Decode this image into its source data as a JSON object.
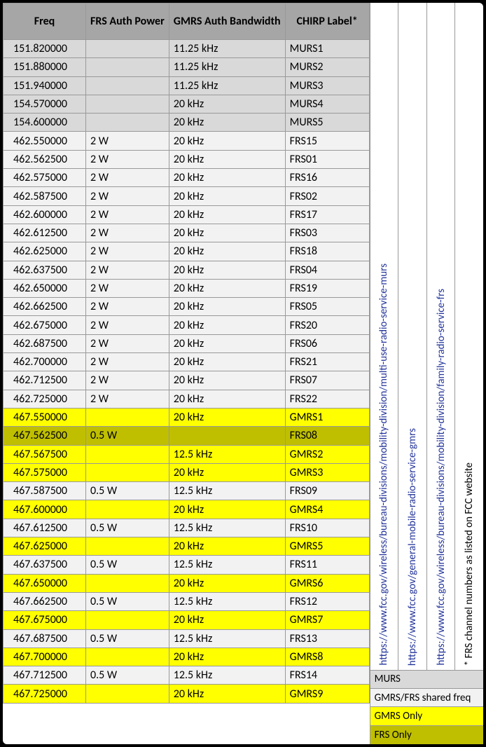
{
  "headers": {
    "freq": "Freq",
    "power": "FRS Auth Power",
    "bw": "GMRS Auth Bandwidth",
    "label": "CHIRP Label*"
  },
  "colors": {
    "header_bg": "#a6a6a6",
    "murs_bg": "#d9d9d9",
    "shared_bg": "#f2f2f2",
    "gmrs_bg": "#ffff00",
    "frs_bg": "#bfbf00",
    "border": "#999999",
    "link": "#223399"
  },
  "rows": [
    {
      "freq": "151.820000",
      "power": "",
      "bw": "11.25 kHz",
      "label": "MURS1",
      "cls": "row-murs"
    },
    {
      "freq": "151.880000",
      "power": "",
      "bw": "11.25 kHz",
      "label": "MURS2",
      "cls": "row-murs"
    },
    {
      "freq": "151.940000",
      "power": "",
      "bw": "11.25 kHz",
      "label": "MURS3",
      "cls": "row-murs"
    },
    {
      "freq": "154.570000",
      "power": "",
      "bw": "20 kHz",
      "label": "MURS4",
      "cls": "row-murs"
    },
    {
      "freq": "154.600000",
      "power": "",
      "bw": "20 kHz",
      "label": "MURS5",
      "cls": "row-murs"
    },
    {
      "freq": "462.550000",
      "power": "2 W",
      "bw": "20 kHz",
      "label": "FRS15",
      "cls": "row-shared"
    },
    {
      "freq": "462.562500",
      "power": "2 W",
      "bw": "20 kHz",
      "label": "FRS01",
      "cls": "row-shared"
    },
    {
      "freq": "462.575000",
      "power": "2 W",
      "bw": "20 kHz",
      "label": "FRS16",
      "cls": "row-shared"
    },
    {
      "freq": "462.587500",
      "power": "2 W",
      "bw": "20 kHz",
      "label": "FRS02",
      "cls": "row-shared"
    },
    {
      "freq": "462.600000",
      "power": "2 W",
      "bw": "20 kHz",
      "label": "FRS17",
      "cls": "row-shared"
    },
    {
      "freq": "462.612500",
      "power": "2 W",
      "bw": "20 kHz",
      "label": "FRS03",
      "cls": "row-shared"
    },
    {
      "freq": "462.625000",
      "power": "2 W",
      "bw": "20 kHz",
      "label": "FRS18",
      "cls": "row-shared"
    },
    {
      "freq": "462.637500",
      "power": "2 W",
      "bw": "20 kHz",
      "label": "FRS04",
      "cls": "row-shared"
    },
    {
      "freq": "462.650000",
      "power": "2 W",
      "bw": "20 kHz",
      "label": "FRS19",
      "cls": "row-shared"
    },
    {
      "freq": "462.662500",
      "power": "2 W",
      "bw": "20 kHz",
      "label": "FRS05",
      "cls": "row-shared"
    },
    {
      "freq": "462.675000",
      "power": "2 W",
      "bw": "20 kHz",
      "label": "FRS20",
      "cls": "row-shared"
    },
    {
      "freq": "462.687500",
      "power": "2 W",
      "bw": "20 kHz",
      "label": "FRS06",
      "cls": "row-shared"
    },
    {
      "freq": "462.700000",
      "power": "2 W",
      "bw": "20 kHz",
      "label": "FRS21",
      "cls": "row-shared"
    },
    {
      "freq": "462.712500",
      "power": "2 W",
      "bw": "20 kHz",
      "label": "FRS07",
      "cls": "row-shared"
    },
    {
      "freq": "462.725000",
      "power": "2 W",
      "bw": "20 kHz",
      "label": "FRS22",
      "cls": "row-shared"
    },
    {
      "freq": "467.550000",
      "power": "",
      "bw": "20 kHz",
      "label": "GMRS1",
      "cls": "row-gmrs"
    },
    {
      "freq": "467.562500",
      "power": "0.5 W",
      "bw": "",
      "label": "FRS08",
      "cls": "row-frs"
    },
    {
      "freq": "467.567500",
      "power": "",
      "bw": "12.5 kHz",
      "label": "GMRS2",
      "cls": "row-gmrs"
    },
    {
      "freq": "467.575000",
      "power": "",
      "bw": "20 kHz",
      "label": "GMRS3",
      "cls": "row-gmrs"
    },
    {
      "freq": "467.587500",
      "power": "0.5 W",
      "bw": "12.5 kHz",
      "label": "FRS09",
      "cls": "row-shared"
    },
    {
      "freq": "467.600000",
      "power": "",
      "bw": "20 kHz",
      "label": "GMRS4",
      "cls": "row-gmrs"
    },
    {
      "freq": "467.612500",
      "power": "0.5 W",
      "bw": "12.5 kHz",
      "label": "FRS10",
      "cls": "row-shared"
    },
    {
      "freq": "467.625000",
      "power": "",
      "bw": "20 kHz",
      "label": "GMRS5",
      "cls": "row-gmrs"
    },
    {
      "freq": "467.637500",
      "power": "0.5 W",
      "bw": "12.5 kHz",
      "label": "FRS11",
      "cls": "row-shared"
    },
    {
      "freq": "467.650000",
      "power": "",
      "bw": "20 kHz",
      "label": "GMRS6",
      "cls": "row-gmrs"
    },
    {
      "freq": "467.662500",
      "power": "0.5 W",
      "bw": "12.5 kHz",
      "label": "FRS12",
      "cls": "row-shared"
    },
    {
      "freq": "467.675000",
      "power": "",
      "bw": "20 kHz",
      "label": "GMRS7",
      "cls": "row-gmrs"
    },
    {
      "freq": "467.687500",
      "power": "0.5 W",
      "bw": "12.5 kHz",
      "label": "FRS13",
      "cls": "row-shared"
    },
    {
      "freq": "467.700000",
      "power": "",
      "bw": "20 kHz",
      "label": "GMRS8",
      "cls": "row-gmrs"
    },
    {
      "freq": "467.712500",
      "power": "0.5 W",
      "bw": "12.5 kHz",
      "label": "FRS14",
      "cls": "row-shared"
    },
    {
      "freq": "467.725000",
      "power": "",
      "bw": "20 kHz",
      "label": "GMRS9",
      "cls": "row-gmrs"
    }
  ],
  "side_links": [
    "https://www.fcc.gov/wireless/bureau-divisions/mobility-division/multi-use-radio-service-murs",
    "https://www.fcc.gov/general-mobile-radio-service-gmrs",
    "https://www.fcc.gov/wireless/bureau-divisions/mobility-division/family-radio-service-frs"
  ],
  "side_note": "* FRS channel numbers as listed on FCC website",
  "legend": {
    "murs": "MURS",
    "shared": "GMRS/FRS shared freq",
    "gmrs": "GMRS Only",
    "frs": "FRS Only"
  }
}
